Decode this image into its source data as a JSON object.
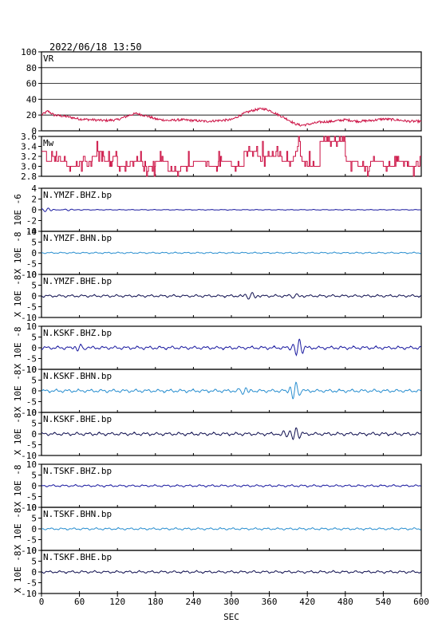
{
  "header": {
    "timestamp": "2022/06/18 13:50"
  },
  "x_axis": {
    "label": "SEC",
    "range": [
      0,
      600
    ],
    "ticks": [
      "0",
      "60",
      "120",
      "180",
      "240",
      "300",
      "360",
      "420",
      "480",
      "540",
      "600"
    ]
  },
  "colors": {
    "vr": "#cc1144",
    "mw": "#cc1144",
    "bhz": "#1a1aa0",
    "bhn": "#2a8fd0",
    "bhe": "#101050"
  },
  "chart_data": [
    {
      "type": "line",
      "name": "VR",
      "label": "VR",
      "ylim": [
        0,
        100
      ],
      "yticks": [
        "0",
        "20",
        "40",
        "60",
        "80",
        "100"
      ],
      "grid": true,
      "color_key": "vr",
      "x": [
        0,
        10,
        20,
        30,
        40,
        60,
        80,
        100,
        120,
        140,
        150,
        160,
        170,
        180,
        200,
        220,
        240,
        260,
        280,
        300,
        320,
        330,
        340,
        350,
        360,
        370,
        380,
        390,
        400,
        410,
        420,
        440,
        460,
        480,
        500,
        520,
        540,
        560,
        580,
        600
      ],
      "y": [
        20,
        25,
        20,
        19,
        18,
        15,
        14,
        13,
        14,
        20,
        22,
        20,
        18,
        15,
        13,
        14,
        13,
        12,
        13,
        14,
        22,
        25,
        27,
        28,
        26,
        22,
        18,
        14,
        9,
        7,
        8,
        11,
        12,
        14,
        12,
        13,
        15,
        14,
        12,
        12
      ]
    },
    {
      "type": "step",
      "name": "Mw",
      "label": "Mw",
      "ylim": [
        2.8,
        3.6
      ],
      "yticks": [
        "2.8",
        "3.0",
        "3.2",
        "3.4",
        "3.6"
      ],
      "grid": false,
      "color_key": "mw",
      "x": [
        0,
        8,
        16,
        24,
        40,
        60,
        80,
        100,
        110,
        120,
        140,
        160,
        180,
        200,
        220,
        240,
        260,
        280,
        300,
        320,
        340,
        360,
        380,
        400,
        410,
        420,
        440,
        460,
        480,
        500,
        520,
        540,
        560,
        580,
        600
      ],
      "y": [
        3.3,
        3.1,
        3.2,
        3.1,
        3.0,
        3.1,
        3.2,
        3.1,
        3.2,
        3.0,
        3.1,
        3.0,
        3.1,
        2.9,
        3.0,
        3.1,
        3.0,
        3.1,
        3.0,
        3.3,
        3.2,
        3.2,
        3.1,
        3.3,
        3.1,
        3.0,
        3.5,
        3.5,
        3.1,
        3.0,
        3.1,
        3.0,
        3.1,
        3.0,
        2.9
      ]
    },
    {
      "type": "line",
      "name": "N.YMZF.BHZ.bp",
      "label": "N.YMZF.BHZ.bp",
      "ylabel": "10E -6",
      "ylim": [
        -4,
        4
      ],
      "yticks": [
        "-4",
        "-2",
        "0",
        "2",
        "4"
      ],
      "grid": false,
      "color_key": "bhz",
      "base_amp": 0.08,
      "events": [
        {
          "x": 8,
          "amp": 0.35,
          "w": 10
        },
        {
          "x": 45,
          "amp": 0.12,
          "w": 15
        }
      ]
    },
    {
      "type": "line",
      "name": "N.YMZF.BHN.bp",
      "label": "N.YMZF.BHN.bp",
      "ylabel": "X 10E -8",
      "ylim": [
        -10,
        10
      ],
      "yticks": [
        "-10",
        "-5",
        "0",
        "5",
        "10"
      ],
      "grid": false,
      "color_key": "bhn",
      "base_amp": 0.4,
      "events": []
    },
    {
      "type": "line",
      "name": "N.YMZF.BHE.bp",
      "label": "N.YMZF.BHE.bp",
      "ylabel": "X 10E -8",
      "ylim": [
        -10,
        10
      ],
      "yticks": [
        "-10",
        "-5",
        "0",
        "5",
        "10"
      ],
      "grid": false,
      "color_key": "bhe",
      "base_amp": 0.7,
      "events": [
        {
          "x": 330,
          "amp": 1.5,
          "w": 10
        },
        {
          "x": 400,
          "amp": 1.0,
          "w": 8
        }
      ]
    },
    {
      "type": "line",
      "name": "N.KSKF.BHZ.bp",
      "label": "N.KSKF.BHZ.bp",
      "ylabel": "X 10E -8",
      "ylim": [
        -10,
        10
      ],
      "yticks": [
        "-10",
        "-5",
        "0",
        "5",
        "10"
      ],
      "grid": false,
      "color_key": "bhz",
      "base_amp": 0.9,
      "events": [
        {
          "x": 405,
          "amp": 4.5,
          "w": 8
        },
        {
          "x": 60,
          "amp": 1.2,
          "w": 12
        }
      ]
    },
    {
      "type": "line",
      "name": "N.KSKF.BHN.bp",
      "label": "N.KSKF.BHN.bp",
      "ylabel": "X 10E -8",
      "ylim": [
        -10,
        10
      ],
      "yticks": [
        "-10",
        "-5",
        "0",
        "5",
        "10"
      ],
      "grid": false,
      "color_key": "bhn",
      "base_amp": 0.9,
      "events": [
        {
          "x": 400,
          "amp": 4.0,
          "w": 9
        },
        {
          "x": 320,
          "amp": 1.5,
          "w": 10
        }
      ]
    },
    {
      "type": "line",
      "name": "N.KSKF.BHE.bp",
      "label": "N.KSKF.BHE.bp",
      "ylabel": "X 10E -8",
      "ylim": [
        -10,
        10
      ],
      "yticks": [
        "-10",
        "-5",
        "0",
        "5",
        "10"
      ],
      "grid": false,
      "color_key": "bhe",
      "base_amp": 0.9,
      "events": [
        {
          "x": 400,
          "amp": 3.5,
          "w": 8
        },
        {
          "x": 380,
          "amp": 1.5,
          "w": 6
        }
      ]
    },
    {
      "type": "line",
      "name": "N.TSKF.BHZ.bp",
      "label": "N.TSKF.BHZ.bp",
      "ylabel": "X 10E -8",
      "ylim": [
        -10,
        10
      ],
      "yticks": [
        "-10",
        "-5",
        "0",
        "5",
        "10"
      ],
      "grid": false,
      "color_key": "bhz",
      "base_amp": 0.6,
      "events": []
    },
    {
      "type": "line",
      "name": "N.TSKF.BHN.bp",
      "label": "N.TSKF.BHN.bp",
      "ylabel": "X 10E -8",
      "ylim": [
        -10,
        10
      ],
      "yticks": [
        "-10",
        "-5",
        "0",
        "5",
        "10"
      ],
      "grid": false,
      "color_key": "bhn",
      "base_amp": 0.6,
      "events": []
    },
    {
      "type": "line",
      "name": "N.TSKF.BHE.bp",
      "label": "N.TSKF.BHE.bp",
      "ylabel": "X 10E -8",
      "ylim": [
        -10,
        10
      ],
      "yticks": [
        "-10",
        "-5",
        "0",
        "5",
        "10"
      ],
      "grid": false,
      "color_key": "bhe",
      "base_amp": 0.7,
      "events": []
    }
  ]
}
